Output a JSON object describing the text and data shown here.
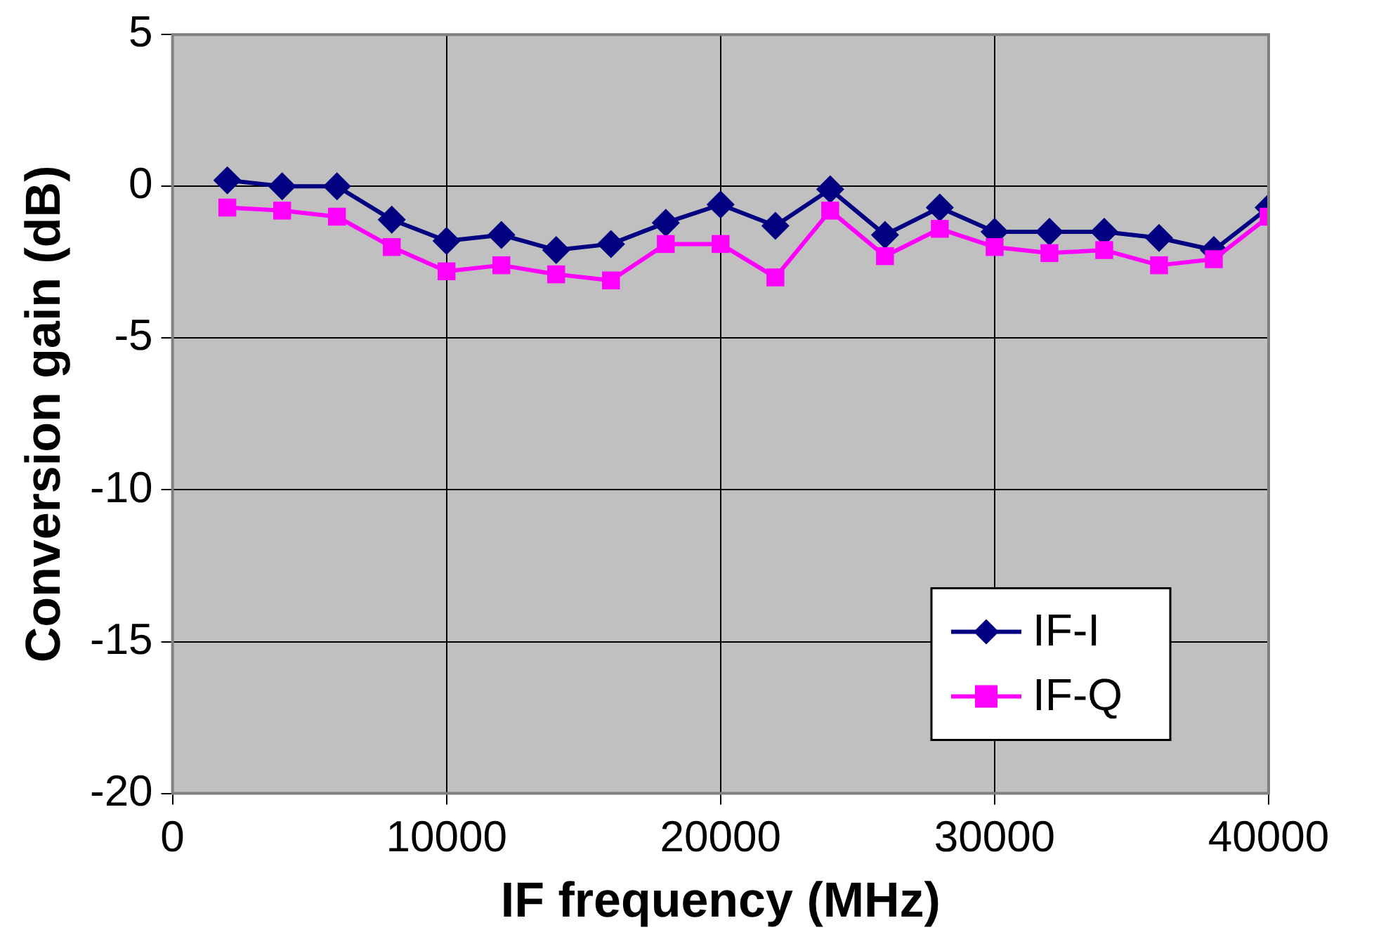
{
  "chart_data": {
    "type": "line",
    "xlabel": "IF frequency (MHz)",
    "ylabel": "Conversion gain (dB)",
    "x": [
      2000,
      4000,
      6000,
      8000,
      10000,
      12000,
      14000,
      16000,
      18000,
      20000,
      22000,
      24000,
      26000,
      28000,
      30000,
      32000,
      34000,
      36000,
      38000,
      40000
    ],
    "series": [
      {
        "name": "IF-I",
        "color": "#000080",
        "marker": "diamond",
        "values": [
          0.2,
          0,
          0,
          -1.1,
          -1.8,
          -1.6,
          -2.1,
          -1.9,
          -1.2,
          -0.6,
          -1.3,
          -0.1,
          -1.6,
          -0.7,
          -1.5,
          -1.5,
          -1.5,
          -1.7,
          -2.1,
          -0.7
        ]
      },
      {
        "name": "IF-Q",
        "color": "#ff00ff",
        "marker": "square",
        "values": [
          -0.7,
          -0.8,
          -1.0,
          -2.0,
          -2.8,
          -2.6,
          -2.9,
          -3.1,
          -1.9,
          -1.9,
          -3.0,
          -0.8,
          -2.3,
          -1.4,
          -2.0,
          -2.2,
          -2.1,
          -2.6,
          -2.4,
          -1.0
        ]
      }
    ],
    "xlim": [
      0,
      40000
    ],
    "xticks": [
      0,
      10000,
      20000,
      30000,
      40000
    ],
    "ylim": [
      -20,
      5
    ],
    "yticks": [
      -20,
      -15,
      -10,
      -5,
      0,
      5
    ],
    "grid": true,
    "legend": "bottom right",
    "line_style": "solid"
  }
}
